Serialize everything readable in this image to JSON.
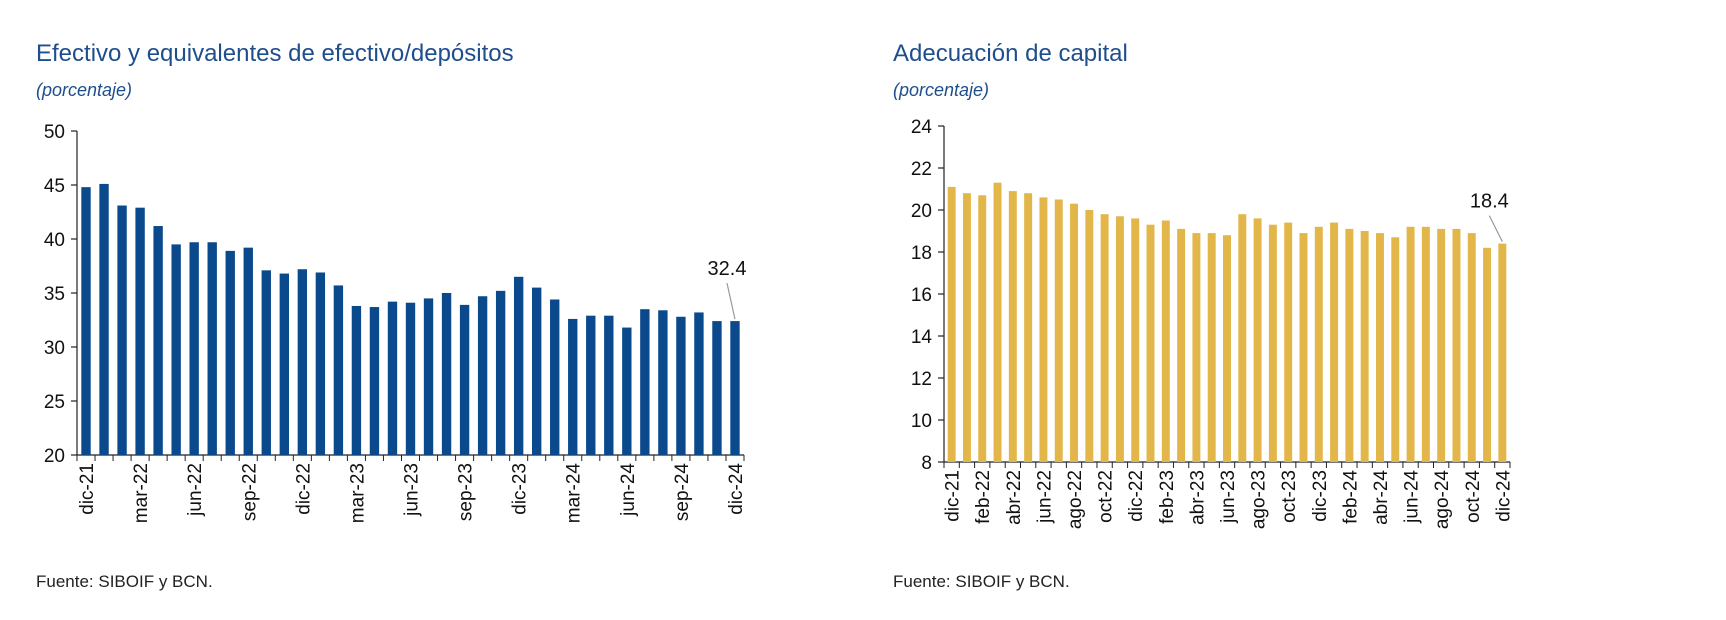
{
  "chart_data": [
    {
      "type": "bar",
      "title": "Efectivo y equivalentes de efectivo/depósitos",
      "subtitle": "(porcentaje)",
      "source": "Fuente: SIBOIF y BCN.",
      "color": "#0a4a8c",
      "ylim": [
        20,
        50
      ],
      "yticks": [
        20,
        25,
        30,
        35,
        40,
        45,
        50
      ],
      "x_tick_labels": [
        "dic-21",
        "mar-22",
        "jun-22",
        "sep-22",
        "dic-22",
        "mar-23",
        "jun-23",
        "sep-23",
        "dic-23",
        "mar-24",
        "jun-24",
        "sep-24",
        "dic-24"
      ],
      "x_tick_every": 3,
      "annotation": {
        "text": "32.4",
        "index": 36
      },
      "values": [
        44.8,
        45.1,
        43.1,
        42.9,
        41.2,
        39.5,
        39.7,
        39.7,
        38.9,
        39.2,
        37.1,
        36.8,
        37.2,
        36.9,
        35.7,
        33.8,
        33.7,
        34.2,
        34.1,
        34.5,
        35.0,
        33.9,
        34.7,
        35.2,
        36.5,
        35.5,
        34.4,
        32.6,
        32.9,
        32.9,
        31.8,
        33.5,
        33.4,
        32.8,
        33.2,
        32.4,
        32.4
      ]
    },
    {
      "type": "bar",
      "title": "Adecuación de capital",
      "subtitle": "(porcentaje)",
      "source": "Fuente: SIBOIF y BCN.",
      "color": "#e2b648",
      "ylim": [
        8,
        24
      ],
      "yticks": [
        8,
        10,
        12,
        14,
        16,
        18,
        20,
        22,
        24
      ],
      "x_tick_labels": [
        "dic-21",
        "feb-22",
        "abr-22",
        "jun-22",
        "ago-22",
        "oct-22",
        "dic-22",
        "feb-23",
        "abr-23",
        "jun-23",
        "ago-23",
        "oct-23",
        "dic-23",
        "feb-24",
        "abr-24",
        "jun-24",
        "ago-24",
        "oct-24",
        "dic-24"
      ],
      "x_tick_every": 2,
      "annotation": {
        "text": "18.4",
        "index": 36
      },
      "values": [
        21.1,
        20.8,
        20.7,
        21.3,
        20.9,
        20.8,
        20.6,
        20.5,
        20.3,
        20.0,
        19.8,
        19.7,
        19.6,
        19.3,
        19.5,
        19.1,
        18.9,
        18.9,
        18.8,
        19.8,
        19.6,
        19.3,
        19.4,
        18.9,
        19.2,
        19.4,
        19.1,
        19.0,
        18.9,
        18.7,
        19.2,
        19.2,
        19.1,
        19.1,
        18.9,
        18.2,
        18.4
      ]
    }
  ]
}
